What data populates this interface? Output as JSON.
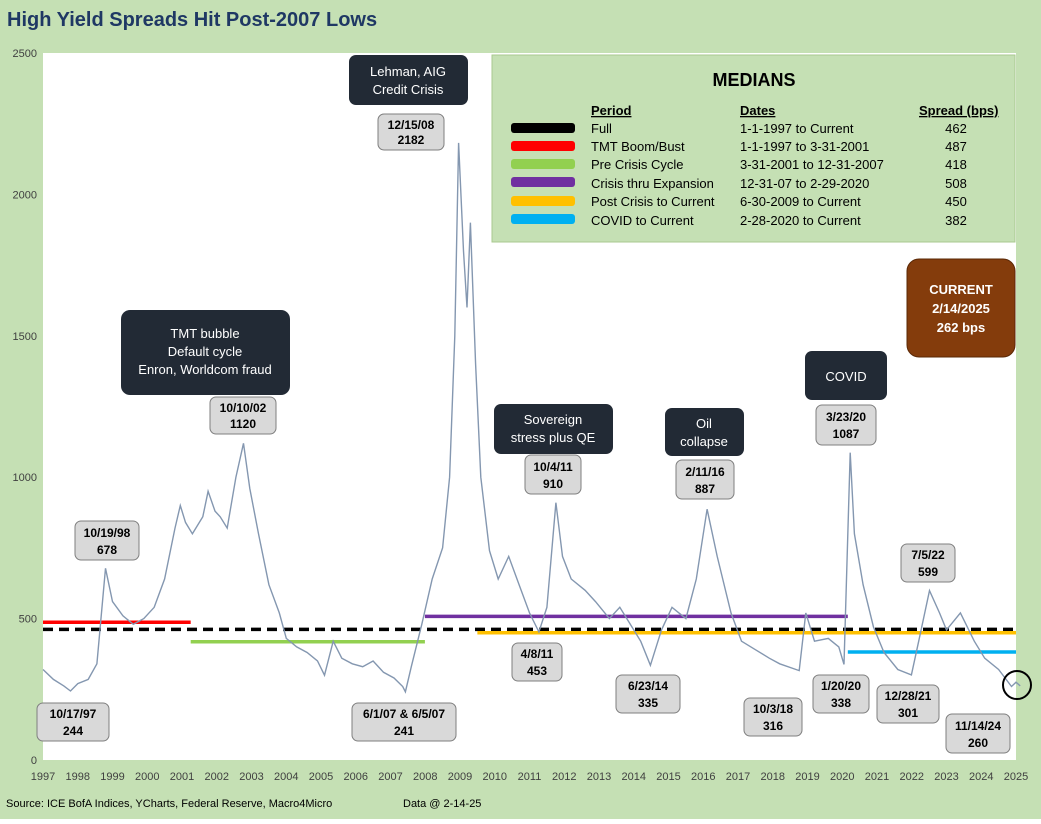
{
  "chart_data": {
    "type": "line",
    "title": "High Yield Spreads Hit Post-2007 Lows",
    "source": "Source: ICE BofA Indices, YCharts, Federal Reserve, Macro4Micro",
    "data_note": "Data @ 2-14-25",
    "ylim": [
      0,
      2500
    ],
    "xlim": [
      1997,
      2025
    ],
    "yticks": [
      "0",
      "500",
      "1000",
      "1500",
      "2000",
      "2500"
    ],
    "xticks": [
      "1997",
      "1998",
      "1999",
      "2000",
      "2001",
      "2002",
      "2003",
      "2004",
      "2005",
      "2006",
      "2007",
      "2008",
      "2009",
      "2010",
      "2011",
      "2012",
      "2013",
      "2014",
      "2015",
      "2016",
      "2017",
      "2018",
      "2019",
      "2020",
      "2021",
      "2022",
      "2023",
      "2024",
      "2025"
    ],
    "series": [
      {
        "values": [
          [
            1997.0,
            320
          ],
          [
            1997.3,
            285
          ],
          [
            1997.6,
            262
          ],
          [
            1997.79,
            244
          ],
          [
            1998.0,
            270
          ],
          [
            1998.3,
            285
          ],
          [
            1998.55,
            340
          ],
          [
            1998.8,
            678
          ],
          [
            1999.0,
            560
          ],
          [
            1999.3,
            510
          ],
          [
            1999.6,
            480
          ],
          [
            1999.9,
            500
          ],
          [
            2000.2,
            540
          ],
          [
            2000.5,
            640
          ],
          [
            2000.8,
            820
          ],
          [
            2000.95,
            900
          ],
          [
            2001.1,
            840
          ],
          [
            2001.3,
            800
          ],
          [
            2001.6,
            860
          ],
          [
            2001.75,
            950
          ],
          [
            2001.95,
            880
          ],
          [
            2002.1,
            860
          ],
          [
            2002.3,
            820
          ],
          [
            2002.55,
            1000
          ],
          [
            2002.77,
            1120
          ],
          [
            2002.95,
            960
          ],
          [
            2003.2,
            800
          ],
          [
            2003.5,
            620
          ],
          [
            2003.8,
            520
          ],
          [
            2004.0,
            430
          ],
          [
            2004.3,
            400
          ],
          [
            2004.6,
            380
          ],
          [
            2004.9,
            350
          ],
          [
            2005.1,
            300
          ],
          [
            2005.35,
            420
          ],
          [
            2005.6,
            360
          ],
          [
            2005.9,
            340
          ],
          [
            2006.2,
            330
          ],
          [
            2006.5,
            350
          ],
          [
            2006.8,
            310
          ],
          [
            2007.1,
            290
          ],
          [
            2007.35,
            260
          ],
          [
            2007.43,
            241
          ],
          [
            2007.6,
            330
          ],
          [
            2007.9,
            480
          ],
          [
            2008.2,
            640
          ],
          [
            2008.5,
            750
          ],
          [
            2008.7,
            1000
          ],
          [
            2008.85,
            1500
          ],
          [
            2008.96,
            2182
          ],
          [
            2009.1,
            1800
          ],
          [
            2009.2,
            1600
          ],
          [
            2009.3,
            1900
          ],
          [
            2009.45,
            1400
          ],
          [
            2009.6,
            1000
          ],
          [
            2009.85,
            740
          ],
          [
            2010.1,
            640
          ],
          [
            2010.4,
            720
          ],
          [
            2010.7,
            620
          ],
          [
            2011.0,
            520
          ],
          [
            2011.27,
            453
          ],
          [
            2011.5,
            540
          ],
          [
            2011.76,
            910
          ],
          [
            2011.95,
            720
          ],
          [
            2012.2,
            640
          ],
          [
            2012.6,
            600
          ],
          [
            2012.9,
            560
          ],
          [
            2013.3,
            500
          ],
          [
            2013.6,
            540
          ],
          [
            2013.9,
            480
          ],
          [
            2014.2,
            420
          ],
          [
            2014.48,
            335
          ],
          [
            2014.8,
            460
          ],
          [
            2015.1,
            540
          ],
          [
            2015.5,
            500
          ],
          [
            2015.8,
            640
          ],
          [
            2016.11,
            887
          ],
          [
            2016.4,
            720
          ],
          [
            2016.8,
            520
          ],
          [
            2017.1,
            420
          ],
          [
            2017.5,
            390
          ],
          [
            2017.9,
            360
          ],
          [
            2018.2,
            340
          ],
          [
            2018.76,
            316
          ],
          [
            2018.95,
            520
          ],
          [
            2019.2,
            420
          ],
          [
            2019.6,
            430
          ],
          [
            2019.9,
            400
          ],
          [
            2020.05,
            338
          ],
          [
            2020.23,
            1087
          ],
          [
            2020.35,
            800
          ],
          [
            2020.6,
            620
          ],
          [
            2020.9,
            470
          ],
          [
            2021.2,
            380
          ],
          [
            2021.6,
            320
          ],
          [
            2021.99,
            301
          ],
          [
            2022.2,
            420
          ],
          [
            2022.51,
            599
          ],
          [
            2022.8,
            520
          ],
          [
            2023.0,
            460
          ],
          [
            2023.4,
            520
          ],
          [
            2023.8,
            420
          ],
          [
            2024.1,
            360
          ],
          [
            2024.5,
            320
          ],
          [
            2024.87,
            260
          ],
          [
            2025.0,
            275
          ],
          [
            2025.12,
            262
          ]
        ]
      }
    ],
    "median_lines": [
      {
        "name": "Full",
        "x": [
          1997.0,
          2025.0
        ],
        "value": 462,
        "color": "#000000",
        "dashed": true
      },
      {
        "name": "TMT Boom/Bust",
        "x": [
          1997.0,
          2001.25
        ],
        "value": 487,
        "color": "#ff0000"
      },
      {
        "name": "Pre Crisis Cycle",
        "x": [
          2001.25,
          2007.99
        ],
        "value": 418,
        "color": "#92d050"
      },
      {
        "name": "Crisis thru Expansion",
        "x": [
          2007.99,
          2020.16
        ],
        "value": 508,
        "color": "#7030a0"
      },
      {
        "name": "Post Crisis to Current",
        "x": [
          2009.5,
          2025.0
        ],
        "value": 450,
        "color": "#ffc000"
      },
      {
        "name": "COVID to Current",
        "x": [
          2020.16,
          2025.0
        ],
        "value": 382,
        "color": "#00b0f0"
      }
    ]
  },
  "chart_style": {
    "background": "#c5e0b4",
    "plot_background": "#ffffff",
    "line_color": "#8497b0",
    "grid": false,
    "legend_placement": "top-right"
  },
  "legend": {
    "title": "MEDIANS",
    "headers": {
      "period": "Period",
      "dates": "Dates",
      "spread": "Spread (bps)"
    },
    "rows": [
      {
        "color": "#000000",
        "period": "Full",
        "dates": "1-1-1997  to Current",
        "spread": "462"
      },
      {
        "color": "#ff0000",
        "period": "TMT Boom/Bust",
        "dates": "1-1-1997  to 3-31-2001",
        "spread": "487"
      },
      {
        "color": "#92d050",
        "period": "Pre Crisis Cycle",
        "dates": "3-31-2001  to 12-31-2007",
        "spread": "418"
      },
      {
        "color": "#7030a0",
        "period": "Crisis thru Expansion",
        "dates": "12-31-07 to 2-29-2020",
        "spread": "508"
      },
      {
        "color": "#ffc000",
        "period": "Post Crisis to Current",
        "dates": "6-30-2009  to Current",
        "spread": "450"
      },
      {
        "color": "#00b0f0",
        "period": "COVID to Current",
        "dates": " 2-28-2020  to Current",
        "spread": "382"
      }
    ]
  },
  "event_boxes": [
    {
      "lines": [
        "Lehman, AIG",
        "Credit Crisis"
      ]
    },
    {
      "lines": [
        "TMT bubble",
        "Default cycle",
        "Enron, Worldcom fraud"
      ]
    },
    {
      "lines": [
        "Sovereign",
        "stress plus QE"
      ]
    },
    {
      "lines": [
        "Oil",
        "collapse"
      ]
    },
    {
      "lines": [
        "COVID"
      ]
    }
  ],
  "current_box": {
    "lines": [
      "CURRENT",
      "2/14/2025",
      "262  bps"
    ],
    "color": "#843c0c"
  },
  "point_labels": [
    {
      "date": "12/15/08",
      "value": "2182"
    },
    {
      "date": "10/10/02",
      "value": "1120"
    },
    {
      "date": "10/19/98",
      "value": "678"
    },
    {
      "date": "10/4/11",
      "value": "910"
    },
    {
      "date": "2/11/16",
      "value": "887"
    },
    {
      "date": "3/23/20",
      "value": "1087"
    },
    {
      "date": "7/5/22",
      "value": "599"
    },
    {
      "date": "10/17/97",
      "value": "244"
    },
    {
      "date": "6/1/07 & 6/5/07",
      "value": "241"
    },
    {
      "date": "4/8/11",
      "value": "453"
    },
    {
      "date": "6/23/14",
      "value": "335"
    },
    {
      "date": "10/3/18",
      "value": "316"
    },
    {
      "date": "1/20/20",
      "value": "338"
    },
    {
      "date": "12/28/21",
      "value": "301"
    },
    {
      "date": "11/14/24",
      "value": "260"
    }
  ]
}
